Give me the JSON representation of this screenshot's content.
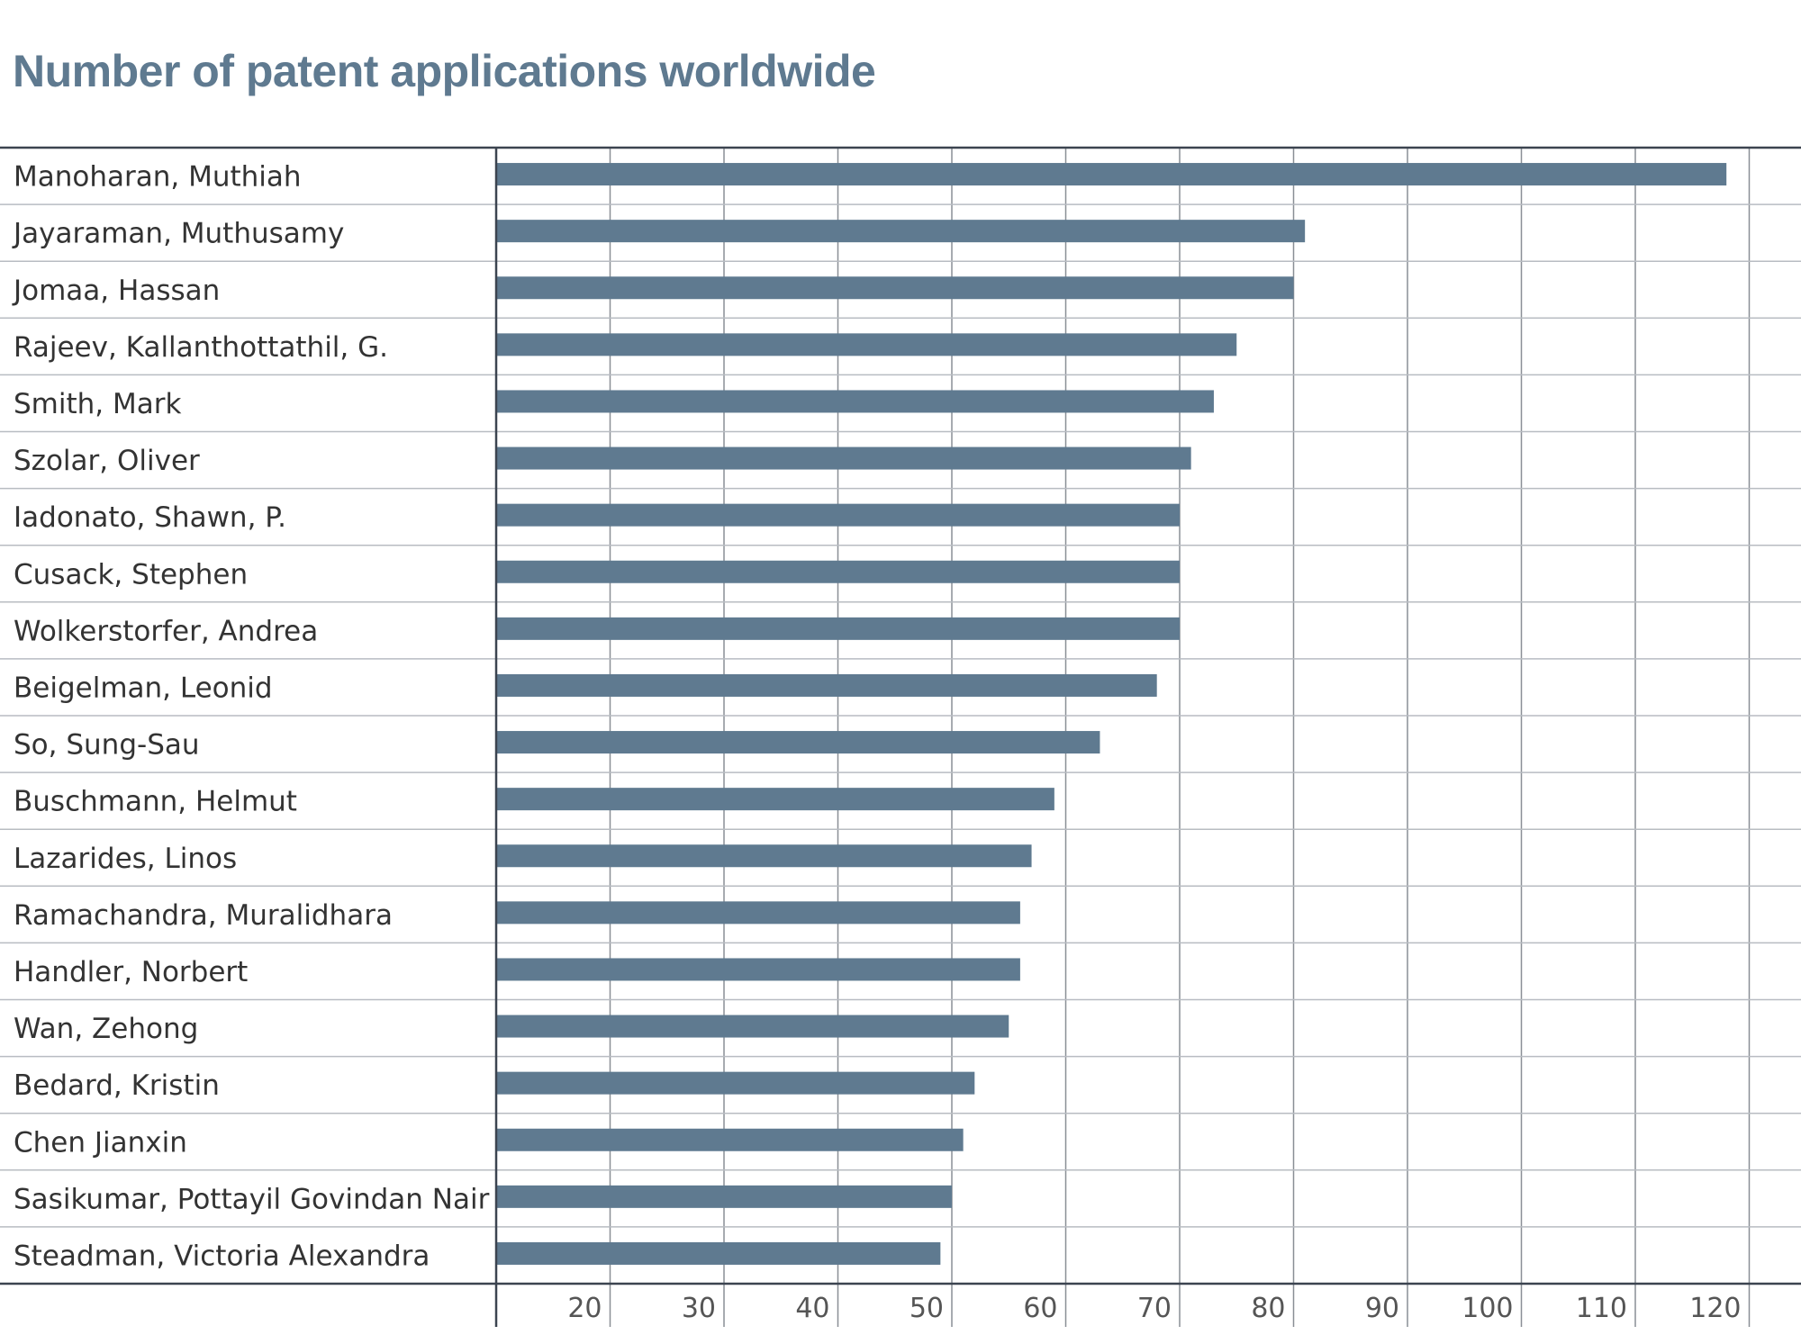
{
  "chart_data": {
    "type": "bar",
    "orientation": "horizontal",
    "title": "Number of patent applications worldwide",
    "xlabel": "",
    "ylabel": "",
    "categories": [
      "Manoharan, Muthiah",
      "Jayaraman, Muthusamy",
      "Jomaa, Hassan",
      "Rajeev, Kallanthottathil, G.",
      "Smith, Mark",
      "Szolar, Oliver",
      "Iadonato, Shawn, P.",
      "Cusack, Stephen",
      "Wolkerstorfer, Andrea",
      "Beigelman, Leonid",
      "So, Sung-Sau",
      "Buschmann, Helmut",
      "Lazarides, Linos",
      "Ramachandra, Muralidhara",
      "Handler, Norbert",
      "Wan, Zehong",
      "Bedard, Kristin",
      "Chen Jianxin",
      "Sasikumar, Pottayil Govindan Nair",
      "Steadman, Victoria Alexandra"
    ],
    "values": [
      118,
      81,
      80,
      75,
      73,
      71,
      70,
      70,
      70,
      68,
      63,
      59,
      57,
      56,
      56,
      55,
      52,
      51,
      50,
      49
    ],
    "xlim": [
      10,
      124
    ],
    "xticks": [
      20,
      30,
      40,
      50,
      60,
      70,
      80,
      90,
      100,
      110,
      120
    ],
    "grid": "vertical",
    "bar_color": "#5f7a90"
  }
}
